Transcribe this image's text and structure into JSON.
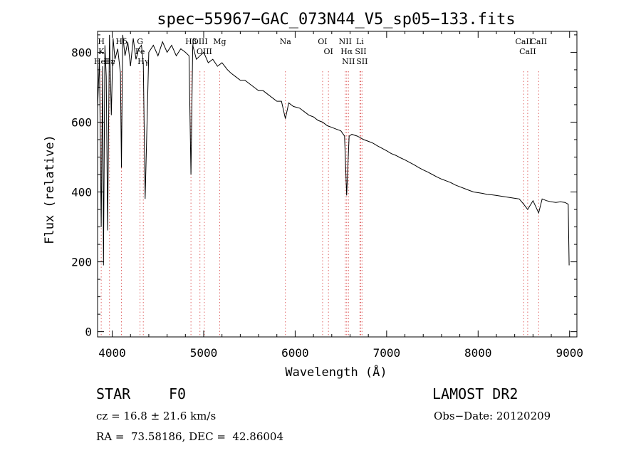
{
  "chart_data": {
    "type": "line",
    "title": "spec−55967−GAC_073N44_V5_sp05−133.fits",
    "xlabel": "Wavelength (Å)",
    "ylabel": "Flux (relative)",
    "xlim": [
      3840,
      9080
    ],
    "ylim": [
      -15,
      860
    ],
    "xticks": [
      4000,
      5000,
      6000,
      7000,
      8000,
      9000
    ],
    "yticks": [
      0,
      200,
      400,
      600,
      800
    ],
    "grid": false,
    "legend": "none",
    "line_color": "#000000",
    "marker_color": "#e06666",
    "series": [
      {
        "x": [
          3840,
          3860,
          3880,
          3895,
          3905,
          3920,
          3935,
          3950,
          3970,
          3990,
          4010,
          4030,
          4060,
          4090,
          4101,
          4115,
          4140,
          4170,
          4200,
          4230,
          4260,
          4290,
          4320,
          4340,
          4360,
          4400,
          4450,
          4500,
          4550,
          4600,
          4650,
          4700,
          4750,
          4800,
          4840,
          4861,
          4880,
          4920,
          4960,
          5000,
          5050,
          5100,
          5150,
          5200,
          5260,
          5300,
          5350,
          5400,
          5450,
          5500,
          5550,
          5600,
          5650,
          5700,
          5750,
          5800,
          5850,
          5893,
          5930,
          5980,
          6050,
          6100,
          6150,
          6200,
          6250,
          6300,
          6350,
          6400,
          6450,
          6500,
          6540,
          6563,
          6590,
          6620,
          6680,
          6750,
          6800,
          6850,
          6900,
          6950,
          7000,
          7050,
          7100,
          7150,
          7200,
          7250,
          7300,
          7350,
          7400,
          7450,
          7500,
          7550,
          7600,
          7650,
          7700,
          7750,
          7800,
          7850,
          7900,
          7950,
          8000,
          8050,
          8100,
          8150,
          8200,
          8250,
          8300,
          8350,
          8400,
          8450,
          8498,
          8542,
          8600,
          8662,
          8700,
          8750,
          8800,
          8850,
          8900,
          8950,
          8985,
          8995
        ],
        "y": [
          640,
          780,
          300,
          760,
          190,
          820,
          730,
          290,
          850,
          620,
          840,
          780,
          810,
          740,
          470,
          850,
          790,
          830,
          760,
          840,
          780,
          810,
          820,
          770,
          380,
          800,
          820,
          790,
          830,
          800,
          820,
          790,
          810,
          800,
          790,
          450,
          820,
          780,
          790,
          800,
          770,
          780,
          760,
          770,
          750,
          740,
          730,
          720,
          720,
          710,
          700,
          690,
          690,
          680,
          670,
          660,
          660,
          610,
          655,
          645,
          640,
          630,
          620,
          615,
          605,
          600,
          590,
          585,
          580,
          575,
          560,
          390,
          560,
          565,
          560,
          550,
          545,
          540,
          532,
          525,
          518,
          510,
          505,
          498,
          492,
          485,
          478,
          470,
          463,
          457,
          450,
          443,
          437,
          432,
          427,
          420,
          415,
          410,
          405,
          400,
          398,
          396,
          393,
          392,
          390,
          388,
          386,
          384,
          382,
          380,
          365,
          350,
          375,
          340,
          380,
          375,
          372,
          370,
          372,
          370,
          365,
          190
        ]
      }
    ],
    "line_markers": [
      {
        "wave": 3880,
        "rows": [
          "H",
          "K",
          "HeI"
        ]
      },
      {
        "wave": 3970,
        "rows": [
          "Hε",
          "Hγ"
        ]
      },
      {
        "wave": 4101,
        "rows": [
          "Hδ"
        ]
      },
      {
        "wave": 4304,
        "rows": [
          "G",
          "Fe"
        ]
      },
      {
        "wave": 4340,
        "rows": [
          "Hγ"
        ]
      },
      {
        "wave": 4861,
        "rows": [
          "Hβ"
        ]
      },
      {
        "wave": 4959,
        "rows": [
          "OIII"
        ]
      },
      {
        "wave": 5007,
        "rows": [
          "OIII"
        ]
      },
      {
        "wave": 5175,
        "rows": [
          "Mg"
        ]
      },
      {
        "wave": 5893,
        "rows": [
          "Na"
        ]
      },
      {
        "wave": 6300,
        "rows": [
          "OI"
        ]
      },
      {
        "wave": 6364,
        "rows": [
          "OI"
        ]
      },
      {
        "wave": 6548,
        "rows": [
          "NII"
        ]
      },
      {
        "wave": 6563,
        "rows": [
          "Hα"
        ]
      },
      {
        "wave": 6583,
        "rows": [
          "NII"
        ]
      },
      {
        "wave": 6708,
        "rows": [
          "Li"
        ]
      },
      {
        "wave": 6717,
        "rows": [
          "SII"
        ]
      },
      {
        "wave": 6731,
        "rows": [
          "SII"
        ]
      },
      {
        "wave": 8498,
        "rows": [
          "CaII"
        ]
      },
      {
        "wave": 8542,
        "rows": [
          "CaII"
        ]
      },
      {
        "wave": 8662,
        "rows": [
          "CaII"
        ]
      }
    ]
  },
  "info": {
    "object_type": "STAR",
    "subclass": "F0",
    "survey": "LAMOST DR2",
    "cz": "cz = 16.8 ± 21.6 km/s",
    "obs_date": "Obs−Date: 20120209",
    "coords": "RA =  73.58186, DEC =  42.86004"
  }
}
